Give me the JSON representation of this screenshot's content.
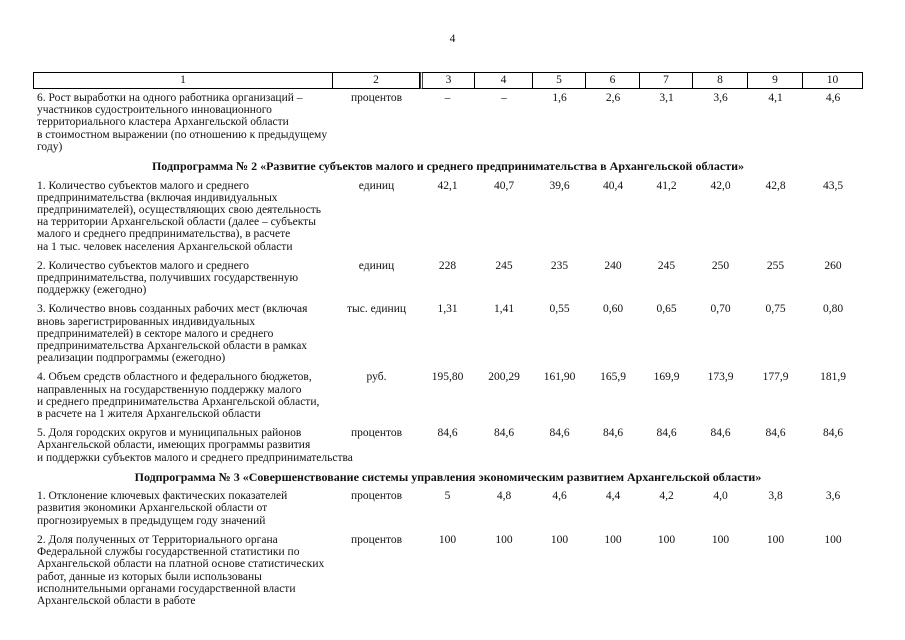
{
  "page": {
    "number": "4"
  },
  "colors": {
    "text": "#111111",
    "border": "#000000",
    "background": "#ffffff"
  },
  "table": {
    "header_cols": [
      "1",
      "2",
      "3",
      "4",
      "5",
      "6",
      "7",
      "8",
      "9",
      "10"
    ],
    "sections": [
      {
        "heading": null,
        "rows": [
          {
            "indicator": "6. Рост выработки на одного работника организаций –\nучастников судостроительного инновационного\nтерриториального кластера Архангельской области\nв стоимостном выражении (по отношению к предыдущему\nгоду)",
            "unit": "процентов",
            "values": [
              "–",
              "–",
              "1,6",
              "2,6",
              "3,1",
              "3,6",
              "4,1",
              "4,6"
            ]
          }
        ]
      },
      {
        "heading": "Подпрограмма № 2 «Развитие субъектов малого и среднего предпринимательства в Архангельской области»",
        "rows": [
          {
            "indicator": "1. Количество субъектов малого и среднего\nпредпринимательства (включая индивидуальных\nпредпринимателей), осуществляющих свою деятельность\nна территории Архангельской области (далее – субъекты\nмалого и среднего предпринимательства), в расчете\nна 1 тыс. человек населения Архангельской области",
            "unit": "единиц",
            "values": [
              "42,1",
              "40,7",
              "39,6",
              "40,4",
              "41,2",
              "42,0",
              "42,8",
              "43,5"
            ]
          },
          {
            "indicator": "2. Количество субъектов малого и среднего\nпредпринимательства, получивших государственную\nподдержку (ежегодно)",
            "unit": "единиц",
            "values": [
              "228",
              "245",
              "235",
              "240",
              "245",
              "250",
              "255",
              "260"
            ]
          },
          {
            "indicator": "3. Количество вновь созданных рабочих мест (включая\nвновь зарегистрированных индивидуальных\nпредпринимателей) в секторе малого и среднего\nпредпринимательства Архангельской области в рамках\nреализации подпрограммы (ежегодно)",
            "unit": "тыс. единиц",
            "values": [
              "1,31",
              "1,41",
              "0,55",
              "0,60",
              "0,65",
              "0,70",
              "0,75",
              "0,80"
            ]
          },
          {
            "indicator": "4. Объем средств областного и федерального бюджетов,\nнаправленных на государственную поддержку малого\nи среднего предпринимательства Архангельской области,\nв расчете на 1 жителя Архангельской области",
            "unit": "руб.",
            "values": [
              "195,80",
              "200,29",
              "161,90",
              "165,9",
              "169,9",
              "173,9",
              "177,9",
              "181,9"
            ]
          },
          {
            "indicator": "5. Доля городских округов и муниципальных районов\nАрхангельской области, имеющих программы развития\nи поддержки субъектов малого и среднего предпринимательства",
            "unit": "процентов",
            "values": [
              "84,6",
              "84,6",
              "84,6",
              "84,6",
              "84,6",
              "84,6",
              "84,6",
              "84,6"
            ]
          }
        ]
      },
      {
        "heading": "Подпрограмма № 3 «Совершенствование системы управления экономическим развитием Архангельской области»",
        "rows": [
          {
            "indicator": "1. Отклонение ключевых фактических показателей\nразвития экономики Архангельской области от\nпрогнозируемых в предыдущем году значений",
            "unit": "процентов",
            "values": [
              "5",
              "4,8",
              "4,6",
              "4,4",
              "4,2",
              "4,0",
              "3,8",
              "3,6"
            ]
          },
          {
            "indicator": "2. Доля полученных от Территориального органа\nФедеральной службы государственной статистики по\nАрхангельской области на платной основе статистических\nработ, данные из которых были использованы\nисполнительными органами государственной власти\nАрхангельской области в работе",
            "unit": "процентов",
            "values": [
              "100",
              "100",
              "100",
              "100",
              "100",
              "100",
              "100",
              "100"
            ]
          }
        ]
      }
    ]
  }
}
